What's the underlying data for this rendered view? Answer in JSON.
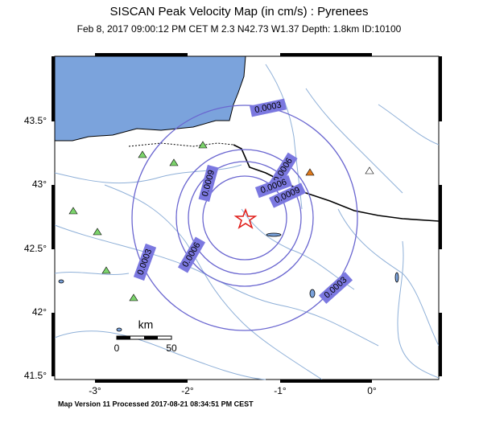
{
  "header": {
    "title": "SISCAN Peak Velocity Map (in cm/s) : Pyrenees",
    "subtitle": "Feb  8, 2017 09:00:12 PM CET   M 2.3   N42.73 W1.37   Depth: 1.8km   ID:10100"
  },
  "axes": {
    "lat_labels": [
      "43.5°",
      "43°",
      "42.5°",
      "42°",
      "41.5°"
    ],
    "lon_labels": [
      "-3°",
      "-2°",
      "-1°",
      "0°"
    ]
  },
  "contours": {
    "labels": [
      "0.0003",
      "0.0006",
      "0.0009",
      "0.0006",
      "0.0009",
      "0.0003",
      "0.0006",
      "0.0003"
    ]
  },
  "scale": {
    "unit": "km",
    "start": "0",
    "end": "50"
  },
  "footer": "Map Version 11 Processed 2017-08-21 08:34:51 PM CEST"
}
